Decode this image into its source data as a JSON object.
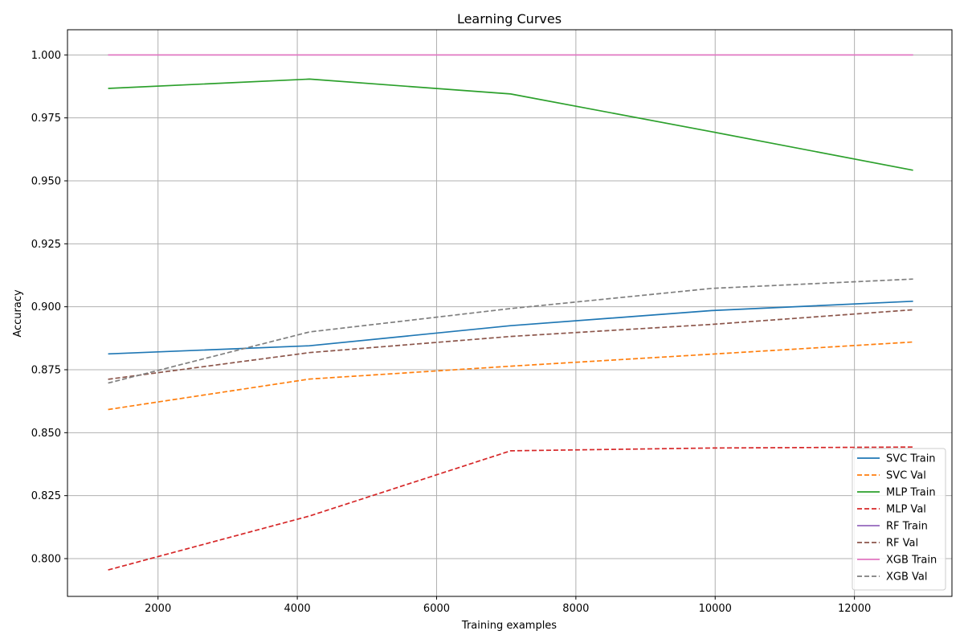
{
  "chart_data": {
    "type": "line",
    "title": "Learning Curves",
    "xlabel": "Training examples",
    "ylabel": "Accuracy",
    "xlim": [
      700,
      13400
    ],
    "ylim": [
      0.785,
      1.01
    ],
    "xticks": [
      2000,
      4000,
      6000,
      8000,
      10000,
      12000
    ],
    "yticks": [
      0.8,
      0.825,
      0.85,
      0.875,
      0.9,
      0.925,
      0.95,
      0.975,
      1.0
    ],
    "xtick_labels": [
      "2000",
      "4000",
      "6000",
      "8000",
      "10000",
      "12000"
    ],
    "ytick_labels": [
      "0.800",
      "0.825",
      "0.850",
      "0.875",
      "0.900",
      "0.925",
      "0.950",
      "0.975",
      "1.000"
    ],
    "grid": true,
    "legend_position": "lower-right",
    "x": [
      1284,
      4174,
      7063,
      9952,
      12842
    ],
    "series": [
      {
        "name": "SVC Train",
        "color": "#1f77b4",
        "dash": false,
        "values": [
          0.8813,
          0.8845,
          0.8925,
          0.8985,
          0.9022
        ]
      },
      {
        "name": "SVC Val",
        "color": "#ff7f0e",
        "dash": true,
        "values": [
          0.8592,
          0.8713,
          0.8764,
          0.8812,
          0.886
        ]
      },
      {
        "name": "MLP Train",
        "color": "#2ca02c",
        "dash": false,
        "values": [
          0.9867,
          0.9904,
          0.9845,
          0.9695,
          0.9542
        ]
      },
      {
        "name": "MLP Val",
        "color": "#d62728",
        "dash": true,
        "values": [
          0.7955,
          0.8169,
          0.8428,
          0.8439,
          0.8443
        ]
      },
      {
        "name": "RF Train",
        "color": "#9467bd",
        "dash": false,
        "values": [
          1.0,
          1.0,
          1.0,
          1.0,
          1.0
        ]
      },
      {
        "name": "RF Val",
        "color": "#8c564b",
        "dash": true,
        "values": [
          0.8712,
          0.8818,
          0.8882,
          0.893,
          0.8988
        ]
      },
      {
        "name": "XGB Train",
        "color": "#e377c2",
        "dash": false,
        "values": [
          1.0,
          1.0,
          1.0,
          1.0,
          1.0
        ]
      },
      {
        "name": "XGB Val",
        "color": "#7f7f7f",
        "dash": true,
        "values": [
          0.8697,
          0.89,
          0.8993,
          0.9073,
          0.911
        ]
      }
    ]
  }
}
